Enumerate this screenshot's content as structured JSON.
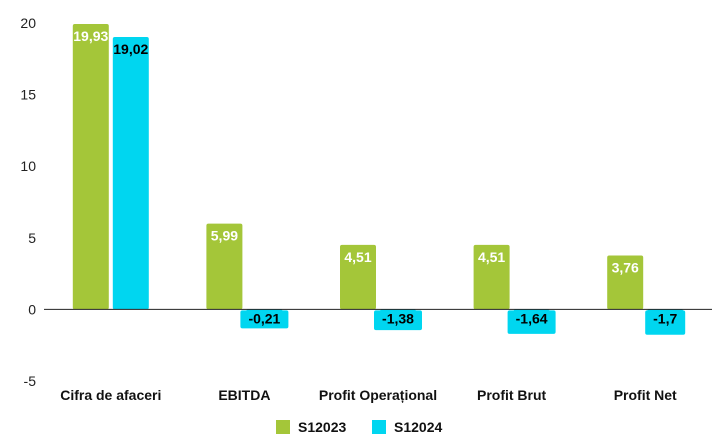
{
  "chart_data": {
    "type": "bar",
    "categories": [
      "Cifra de afaceri",
      "EBITDA",
      "Profit Operațional",
      "Profit Brut",
      "Profit Net"
    ],
    "series": [
      {
        "name": "S12023",
        "color": "#a4c639",
        "values": [
          19.93,
          5.99,
          4.51,
          4.51,
          3.76
        ],
        "labels": [
          "19,93",
          "5,99",
          "4,51",
          "4,51",
          "3,76"
        ],
        "label_color": "#ffffff"
      },
      {
        "name": "S12024",
        "color": "#00d6f0",
        "values": [
          19.02,
          -0.21,
          -1.38,
          -1.64,
          -1.7
        ],
        "labels": [
          "19,02",
          "-0,21",
          "-1,38",
          "-1,64",
          "-1,7"
        ],
        "label_color": "#000000"
      }
    ],
    "yticks": [
      -5,
      0,
      5,
      10,
      15,
      20
    ],
    "ylim": [
      -5,
      20
    ],
    "grid": false,
    "legend": "bottom"
  }
}
